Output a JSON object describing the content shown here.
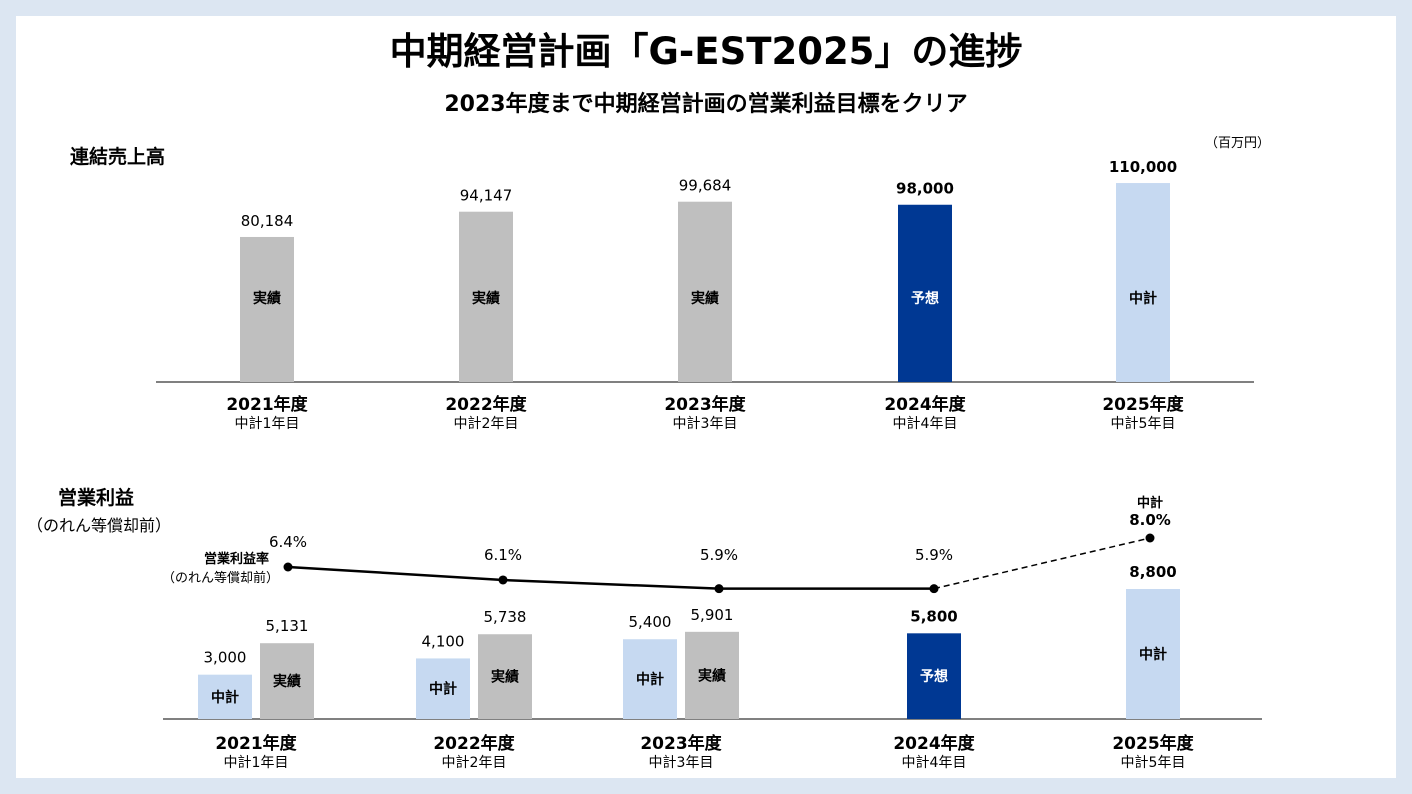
{
  "title": "中期経営計画「G-EST2025」の進捗",
  "subtitle": "2023年度まで中期経営計画の営業利益目標をクリア",
  "unit": "（百万円）",
  "colors": {
    "actual": "#bfbfbf",
    "forecast": "#003893",
    "plan": "#c6d9f1",
    "background": "#dce6f2"
  },
  "chart_data": [
    {
      "type": "bar",
      "title": "連結売上高",
      "categories": [
        "2021年度",
        "2022年度",
        "2023年度",
        "2024年度",
        "2025年度"
      ],
      "category_sublabels": [
        "中計1年目",
        "中計2年目",
        "中計3年目",
        "中計4年目",
        "中計5年目"
      ],
      "values": [
        80184,
        94147,
        99684,
        98000,
        110000
      ],
      "value_labels": [
        "80,184",
        "94,147",
        "99,684",
        "98,000",
        "110,000"
      ],
      "bar_labels": [
        "実績",
        "実績",
        "実績",
        "予想",
        "中計"
      ],
      "bar_kinds": [
        "actual",
        "actual",
        "actual",
        "forecast",
        "plan"
      ],
      "ylim": [
        0,
        115000
      ],
      "grid": false
    },
    {
      "type": "bar",
      "title": "営業利益",
      "title_sub": "（のれん等償却前）",
      "categories": [
        "2021年度",
        "2022年度",
        "2023年度",
        "2024年度",
        "2025年度"
      ],
      "category_sublabels": [
        "中計1年目",
        "中計2年目",
        "中計3年目",
        "中計4年目",
        "中計5年目"
      ],
      "groups": [
        {
          "bars": [
            {
              "kind": "plan",
              "label": "中計",
              "value": 3000,
              "value_label": "3,000"
            },
            {
              "kind": "actual",
              "label": "実績",
              "value": 5131,
              "value_label": "5,131"
            }
          ]
        },
        {
          "bars": [
            {
              "kind": "plan",
              "label": "中計",
              "value": 4100,
              "value_label": "4,100"
            },
            {
              "kind": "actual",
              "label": "実績",
              "value": 5738,
              "value_label": "5,738"
            }
          ]
        },
        {
          "bars": [
            {
              "kind": "plan",
              "label": "中計",
              "value": 5400,
              "value_label": "5,400"
            },
            {
              "kind": "actual",
              "label": "実績",
              "value": 5901,
              "value_label": "5,901"
            }
          ]
        },
        {
          "bars": [
            {
              "kind": "forecast",
              "label": "予想",
              "value": 5800,
              "value_label": "5,800"
            }
          ]
        },
        {
          "bars": [
            {
              "kind": "plan",
              "label": "中計",
              "value": 8800,
              "value_label": "8,800"
            }
          ]
        }
      ],
      "ylim": [
        0,
        9500
      ],
      "line_series": {
        "name": "営業利益率",
        "name_sub": "（のれん等償却前）",
        "values": [
          6.4,
          6.1,
          5.9,
          5.9,
          8.0
        ],
        "value_labels": [
          "6.4%",
          "6.1%",
          "5.9%",
          "5.9%",
          "8.0%"
        ],
        "final_point_prefix": "中計",
        "dashed_last_segment": true
      },
      "grid": false
    }
  ]
}
